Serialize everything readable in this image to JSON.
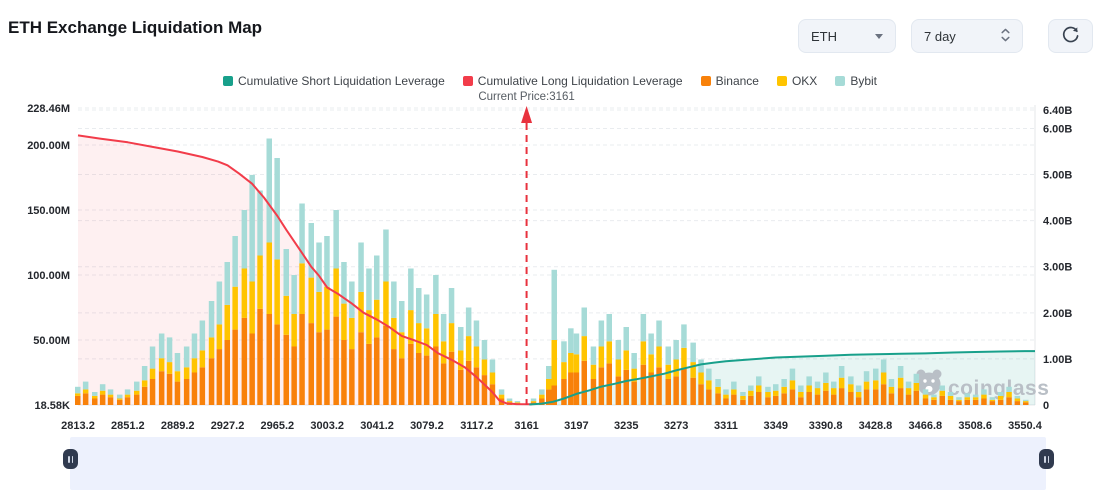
{
  "header": {
    "title": "ETH Exchange Liquidation Map",
    "symbol_select": {
      "value": "ETH"
    },
    "period_select": {
      "value": "7 day"
    }
  },
  "watermark": {
    "label": "coinglass"
  },
  "chart_data": {
    "type": "bar",
    "subtype": "stacked-bars-with-cumulative-lines",
    "title": "ETH Exchange Liquidation Map",
    "legend": [
      {
        "label": "Cumulative Short Liquidation Leverage",
        "color": "#18a08b",
        "kind": "line"
      },
      {
        "label": "Cumulative Long Liquidation Leverage",
        "color": "#f23c4a",
        "kind": "line"
      },
      {
        "label": "Binance",
        "color": "#f8810a",
        "kind": "bar"
      },
      {
        "label": "OKX",
        "color": "#ffc400",
        "kind": "bar"
      },
      {
        "label": "Bybit",
        "color": "#a6dbd7",
        "kind": "bar"
      }
    ],
    "annotation": {
      "label": "Current Price:3161",
      "x": 3161,
      "color": "#e8323e"
    },
    "xlabel": "",
    "ylabel": "",
    "x_ticks": [
      2813.2,
      2851.2,
      2889.2,
      2927.2,
      2965.2,
      3003.2,
      3041.2,
      3079.2,
      3117.2,
      3161,
      3197,
      3235,
      3273,
      3311,
      3349,
      3390.8,
      3428.8,
      3466.8,
      3508.6,
      3550.4
    ],
    "left_axis": {
      "unit": "M",
      "max": 228.46,
      "ticks": [
        {
          "label": "228.46M",
          "value": 228.46
        },
        {
          "label": "200.00M",
          "value": 200
        },
        {
          "label": "150.00M",
          "value": 150
        },
        {
          "label": "100.00M",
          "value": 100
        },
        {
          "label": "50.00M",
          "value": 50
        },
        {
          "label": "18.58K",
          "value": 0.01858
        }
      ]
    },
    "right_axis": {
      "unit": "B",
      "max": 6.4,
      "ticks": [
        {
          "label": "6.40B",
          "value": 6.4
        },
        {
          "label": "6.00B",
          "value": 6
        },
        {
          "label": "5.00B",
          "value": 5
        },
        {
          "label": "4.00B",
          "value": 4
        },
        {
          "label": "3.00B",
          "value": 3
        },
        {
          "label": "2.00B",
          "value": 2
        },
        {
          "label": "1.00B",
          "value": 1
        },
        {
          "label": "0",
          "value": 0
        }
      ]
    },
    "series": {
      "bars": {
        "note": "stacked liquidation leverage per price level, millions USD, left axis",
        "stack_order": [
          "Binance",
          "OKX",
          "Bybit"
        ],
        "points": [
          [
            2813,
            7,
            2,
            5
          ],
          [
            2819,
            9,
            3,
            6
          ],
          [
            2826,
            5,
            2,
            3
          ],
          [
            2832,
            8,
            3,
            5
          ],
          [
            2838,
            6,
            2,
            4
          ],
          [
            2845,
            4,
            1,
            3
          ],
          [
            2851,
            6,
            2,
            4
          ],
          [
            2858,
            8,
            3,
            7
          ],
          [
            2864,
            14,
            5,
            11
          ],
          [
            2870,
            20,
            8,
            17
          ],
          [
            2877,
            26,
            10,
            19
          ],
          [
            2883,
            24,
            9,
            19
          ],
          [
            2889,
            18,
            8,
            14
          ],
          [
            2896,
            20,
            9,
            16
          ],
          [
            2902,
            25,
            11,
            19
          ],
          [
            2908,
            29,
            13,
            23
          ],
          [
            2915,
            36,
            16,
            28
          ],
          [
            2921,
            43,
            19,
            33
          ],
          [
            2927,
            50,
            27,
            33
          ],
          [
            2933,
            58,
            33,
            39
          ],
          [
            2940,
            67,
            38,
            45
          ],
          [
            2946,
            55,
            40,
            82
          ],
          [
            2952,
            74,
            41,
            50
          ],
          [
            2959,
            70,
            55,
            80
          ],
          [
            2965,
            62,
            50,
            78
          ],
          [
            2972,
            54,
            30,
            36
          ],
          [
            2978,
            45,
            25,
            30
          ],
          [
            2984,
            70,
            39,
            46
          ],
          [
            2991,
            63,
            35,
            42
          ],
          [
            2997,
            56,
            31,
            38
          ],
          [
            3003,
            58,
            33,
            39
          ],
          [
            3010,
            68,
            37,
            45
          ],
          [
            3016,
            50,
            28,
            32
          ],
          [
            3022,
            43,
            24,
            28
          ],
          [
            3029,
            56,
            31,
            38
          ],
          [
            3035,
            47,
            26,
            32
          ],
          [
            3041,
            52,
            29,
            34
          ],
          [
            3048,
            61,
            34,
            40
          ],
          [
            3054,
            43,
            24,
            28
          ],
          [
            3060,
            36,
            20,
            24
          ],
          [
            3067,
            47,
            26,
            32
          ],
          [
            3073,
            40,
            23,
            27
          ],
          [
            3079,
            38,
            21,
            26
          ],
          [
            3086,
            45,
            25,
            30
          ],
          [
            3092,
            32,
            17,
            21
          ],
          [
            3098,
            41,
            22,
            27
          ],
          [
            3105,
            27,
            15,
            18
          ],
          [
            3111,
            34,
            19,
            22
          ],
          [
            3117,
            29,
            16,
            20
          ],
          [
            3124,
            23,
            12,
            15
          ],
          [
            3131,
            16,
            9,
            10
          ],
          [
            3139,
            5,
            3,
            4
          ],
          [
            3146,
            2,
            1,
            2
          ],
          [
            3153,
            1,
            1,
            1
          ],
          [
            3166,
            2,
            1,
            2
          ],
          [
            3172,
            5,
            3,
            4
          ],
          [
            3177,
            12,
            8,
            10
          ],
          [
            3181,
            15,
            35,
            54
          ],
          [
            3188,
            20,
            13,
            16
          ],
          [
            3193,
            25,
            15,
            19
          ],
          [
            3197,
            25,
            14,
            16
          ],
          [
            3203,
            34,
            19,
            22
          ],
          [
            3210,
            20,
            11,
            14
          ],
          [
            3216,
            29,
            16,
            20
          ],
          [
            3222,
            32,
            17,
            21
          ],
          [
            3229,
            22,
            13,
            15
          ],
          [
            3235,
            27,
            15,
            18
          ],
          [
            3241,
            18,
            10,
            12
          ],
          [
            3248,
            31,
            18,
            21
          ],
          [
            3254,
            25,
            14,
            16
          ],
          [
            3260,
            29,
            16,
            20
          ],
          [
            3267,
            20,
            11,
            14
          ],
          [
            3273,
            22,
            13,
            15
          ],
          [
            3279,
            28,
            16,
            18
          ],
          [
            3286,
            21,
            12,
            15
          ],
          [
            3292,
            16,
            9,
            10
          ],
          [
            3298,
            12,
            7,
            9
          ],
          [
            3305,
            9,
            5,
            6
          ],
          [
            3311,
            5,
            3,
            4
          ],
          [
            3317,
            8,
            4,
            6
          ],
          [
            3324,
            4,
            3,
            3
          ],
          [
            3330,
            7,
            4,
            4
          ],
          [
            3336,
            10,
            5,
            7
          ],
          [
            3343,
            6,
            4,
            4
          ],
          [
            3349,
            7,
            4,
            5
          ],
          [
            3356,
            9,
            5,
            6
          ],
          [
            3363,
            12,
            7,
            9
          ],
          [
            3370,
            6,
            4,
            5
          ],
          [
            3377,
            10,
            5,
            7
          ],
          [
            3384,
            8,
            5,
            5
          ],
          [
            3391,
            11,
            6,
            8
          ],
          [
            3397,
            8,
            5,
            5
          ],
          [
            3403,
            13,
            8,
            9
          ],
          [
            3410,
            10,
            6,
            6
          ],
          [
            3416,
            6,
            4,
            5
          ],
          [
            3422,
            12,
            6,
            8
          ],
          [
            3429,
            12,
            7,
            9
          ],
          [
            3435,
            16,
            9,
            10
          ],
          [
            3441,
            9,
            5,
            6
          ],
          [
            3448,
            13,
            8,
            9
          ],
          [
            3454,
            8,
            5,
            5
          ],
          [
            3460,
            11,
            6,
            7
          ],
          [
            3467,
            5,
            3,
            4
          ],
          [
            3474,
            4,
            2,
            2
          ],
          [
            3481,
            7,
            4,
            4
          ],
          [
            3488,
            4,
            3,
            3
          ],
          [
            3495,
            3,
            1,
            2
          ],
          [
            3502,
            4,
            2,
            3
          ],
          [
            3509,
            4,
            2,
            2
          ],
          [
            3516,
            5,
            3,
            4
          ],
          [
            3523,
            3,
            1,
            2
          ],
          [
            3530,
            4,
            3,
            3
          ],
          [
            3537,
            6,
            4,
            4
          ],
          [
            3544,
            3,
            2,
            2
          ],
          [
            3551,
            2,
            1,
            1
          ]
        ]
      },
      "long_leverage": {
        "name": "Cumulative Long Liquidation Leverage",
        "unit": "B, right axis",
        "points": [
          [
            2813.2,
            5.85
          ],
          [
            2830,
            5.78
          ],
          [
            2851.2,
            5.7
          ],
          [
            2870,
            5.6
          ],
          [
            2889.2,
            5.5
          ],
          [
            2908,
            5.38
          ],
          [
            2920,
            5.28
          ],
          [
            2927.2,
            5.2
          ],
          [
            2936,
            5.02
          ],
          [
            2946,
            4.8
          ],
          [
            2955,
            4.5
          ],
          [
            2965.2,
            4.1
          ],
          [
            2972,
            3.8
          ],
          [
            2978,
            3.55
          ],
          [
            2984,
            3.3
          ],
          [
            2991,
            3.0
          ],
          [
            2997,
            2.8
          ],
          [
            3003.2,
            2.55
          ],
          [
            3012,
            2.4
          ],
          [
            3022,
            2.2
          ],
          [
            3031,
            2.0
          ],
          [
            3041.2,
            1.85
          ],
          [
            3050,
            1.7
          ],
          [
            3060,
            1.5
          ],
          [
            3070,
            1.4
          ],
          [
            3079.2,
            1.3
          ],
          [
            3088,
            1.12
          ],
          [
            3098,
            0.98
          ],
          [
            3108,
            0.82
          ],
          [
            3117.2,
            0.6
          ],
          [
            3125,
            0.42
          ],
          [
            3131,
            0.28
          ],
          [
            3137,
            0.1
          ],
          [
            3143,
            0.04
          ],
          [
            3152,
            0.02
          ],
          [
            3165,
            0.015
          ]
        ]
      },
      "short_leverage": {
        "name": "Cumulative Short Liquidation Leverage",
        "unit": "B, right axis",
        "points": [
          [
            3163,
            0.01
          ],
          [
            3172,
            0.03
          ],
          [
            3180,
            0.07
          ],
          [
            3188,
            0.14
          ],
          [
            3197,
            0.24
          ],
          [
            3207,
            0.32
          ],
          [
            3216,
            0.4
          ],
          [
            3226,
            0.46
          ],
          [
            3235,
            0.52
          ],
          [
            3245,
            0.57
          ],
          [
            3254,
            0.62
          ],
          [
            3264,
            0.68
          ],
          [
            3273,
            0.75
          ],
          [
            3283,
            0.82
          ],
          [
            3292,
            0.88
          ],
          [
            3302,
            0.92
          ],
          [
            3311,
            0.95
          ],
          [
            3330,
            0.99
          ],
          [
            3349,
            1.03
          ],
          [
            3370,
            1.05
          ],
          [
            3390.8,
            1.07
          ],
          [
            3410,
            1.09
          ],
          [
            3428.8,
            1.1
          ],
          [
            3448,
            1.11
          ],
          [
            3466.8,
            1.12
          ],
          [
            3490,
            1.14
          ],
          [
            3508.6,
            1.15
          ],
          [
            3530,
            1.16
          ],
          [
            3550.4,
            1.17
          ]
        ]
      }
    },
    "colors": {
      "binance": "#f8810a",
      "okx": "#ffc400",
      "bybit": "#a6dbd7",
      "long_line": "#f23c4a",
      "short_line": "#18a08b",
      "long_fill": "rgba(242,60,74,0.08)",
      "short_fill": "rgba(24,160,139,0.10)",
      "grid": "#e9ecef",
      "axis_text": "#24272d",
      "annotation_text": "#565c63",
      "watermark": "#b9bfc6"
    },
    "grid": true,
    "legend_position": "top-center"
  }
}
